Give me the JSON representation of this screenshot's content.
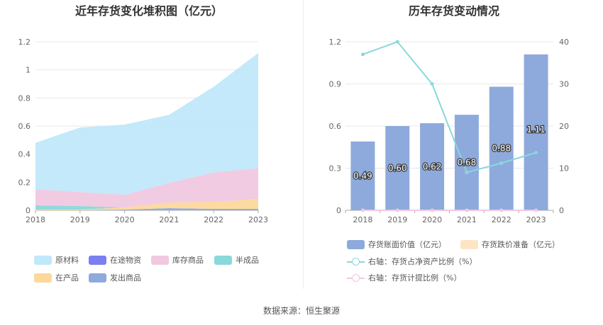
{
  "left": {
    "title": "近年存货变化堆积图（亿元）",
    "legend": {
      "raw_materials": "原材料",
      "in_transit": "在途物资",
      "stock_goods": "库存商品",
      "semi_finished": "半成品",
      "wip": "在产品",
      "shipped_goods": "发出商品"
    }
  },
  "right": {
    "title": "历年存货变动情况",
    "legend": {
      "book_value": "存货账面价值（亿元）",
      "impairment": "存货跌价准备（亿元）",
      "ratio_net_assets": "右轴：存货占净资产比例（%）",
      "provision_ratio": "右轴：存货计提比例（%）"
    }
  },
  "source": "数据来源：恒生聚源",
  "chart_data": [
    {
      "type": "area",
      "stacked": true,
      "title": "近年存货变化堆积图（亿元）",
      "categories": [
        "2018",
        "2019",
        "2020",
        "2021",
        "2022",
        "2023"
      ],
      "ylim": [
        0,
        1.2
      ],
      "yticks": [
        "0",
        "0.2",
        "0.4",
        "0.6",
        "0.8",
        "1",
        "1.2"
      ],
      "grid": true,
      "legend_position": "bottom",
      "series": [
        {
          "name": "发出商品",
          "color": "#8eaadc",
          "values": [
            0.0,
            0.0,
            0.005,
            0.015,
            0.01,
            0.01
          ]
        },
        {
          "name": "在产品",
          "color": "#fcd89b",
          "values": [
            0.005,
            0.005,
            0.015,
            0.04,
            0.05,
            0.07
          ]
        },
        {
          "name": "半成品",
          "color": "#8ad8db",
          "values": [
            0.03,
            0.025,
            0.0,
            0.0,
            0.0,
            0.0
          ]
        },
        {
          "name": "库存商品",
          "color": "#f0c8e0",
          "values": [
            0.115,
            0.1,
            0.09,
            0.14,
            0.21,
            0.22
          ]
        },
        {
          "name": "在途物资",
          "color": "#7b7ff0",
          "values": [
            0.0,
            0.0,
            0.0,
            0.0,
            0.0,
            0.0
          ]
        },
        {
          "name": "原材料",
          "color": "#c0e8fa",
          "values": [
            0.33,
            0.46,
            0.5,
            0.485,
            0.61,
            0.82
          ]
        }
      ]
    },
    {
      "type": "bar",
      "title": "历年存货变动情况",
      "categories": [
        "2018",
        "2019",
        "2020",
        "2021",
        "2022",
        "2023"
      ],
      "ylim": [
        0,
        1.2
      ],
      "yticks": [
        "0",
        "0.3",
        "0.6",
        "0.9",
        "1.2"
      ],
      "y2lim": [
        0,
        40
      ],
      "y2ticks": [
        "0",
        "10",
        "20",
        "30",
        "40"
      ],
      "grid": true,
      "legend_position": "bottom",
      "series": [
        {
          "name": "存货账面价值（亿元）",
          "axis": "left",
          "kind": "bar",
          "color": "#8eaadc",
          "values": [
            0.49,
            0.6,
            0.62,
            0.68,
            0.88,
            1.11
          ],
          "labels": [
            "0.49",
            "0.60",
            "0.62",
            "0.68",
            "0.88",
            "1.11"
          ]
        },
        {
          "name": "存货跌价准备（亿元）",
          "axis": "left",
          "kind": "bar",
          "color": "#fde5c4",
          "values": [
            0,
            0,
            0,
            0,
            0,
            0
          ]
        },
        {
          "name": "右轴：存货占净资产比例（%）",
          "axis": "right",
          "kind": "line",
          "color": "#8ad8db",
          "values": [
            37,
            40,
            30,
            9,
            11.2,
            13.7
          ]
        },
        {
          "name": "右轴：存货计提比例（%）",
          "axis": "right",
          "kind": "line",
          "color": "#f0c8e0",
          "values": [
            0,
            0,
            0,
            0,
            0,
            0
          ]
        }
      ]
    }
  ]
}
